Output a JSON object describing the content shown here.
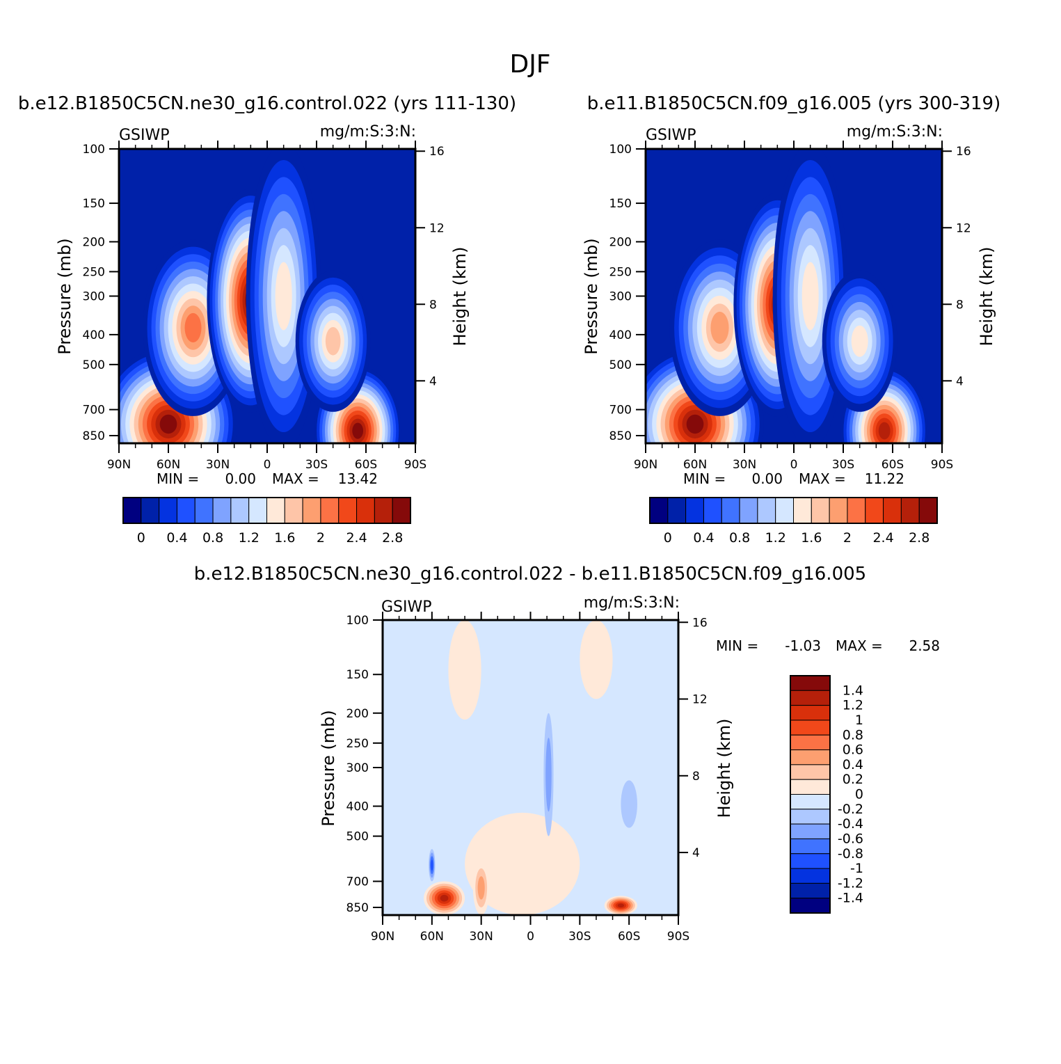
{
  "page": {
    "title": "DJF"
  },
  "colors": {
    "abs_scale": [
      "#000080",
      "#0021a9",
      "#0433e0",
      "#1f51ff",
      "#4073ff",
      "#7fa3ff",
      "#adc8ff",
      "#d5e7ff",
      "#ffe9d9",
      "#fec5a8",
      "#fd9f70",
      "#fc7245",
      "#f1481a",
      "#d9300b",
      "#b5200a",
      "#850a0a"
    ],
    "diff_scale": [
      "#000080",
      "#0021a9",
      "#0433e0",
      "#1f51ff",
      "#4073ff",
      "#7fa3ff",
      "#adc8ff",
      "#d5e7ff",
      "#ffe9d9",
      "#fec5a8",
      "#fd9f70",
      "#fc7245",
      "#f1481a",
      "#d9300b",
      "#b5200a",
      "#850a0a"
    ]
  },
  "chart_data": [
    {
      "type": "contour",
      "title": "b.e12.B1850C5CN.ne30_g16.control.022 (yrs 111-130)",
      "left_label": "GSIWP",
      "right_label": "mg/m:S:3:N:",
      "ylabel": "Pressure (mb)",
      "ylabel_right": "Height (km)",
      "x_ticks": [
        "90N",
        "60N",
        "30N",
        "0",
        "30S",
        "60S",
        "90S"
      ],
      "y_ticks": [
        "100",
        "150",
        "200",
        "250",
        "300",
        "400",
        "500",
        "700",
        "850"
      ],
      "y_ticks_right": [
        "16",
        "12",
        "8",
        "4"
      ],
      "min_label": "MIN =",
      "min_value": "0.00",
      "max_label": "MAX =",
      "max_value": "13.42",
      "colorbar_labels": [
        "0",
        "0.4",
        "0.8",
        "1.2",
        "1.6",
        "2",
        "2.4",
        "2.8"
      ],
      "blobs": [
        {
          "lat": 60,
          "p": 780,
          "lw": 22,
          "ph": 130,
          "peak": 15
        },
        {
          "lat": 45,
          "p": 380,
          "lw": 16,
          "ph": 150,
          "peak": 11
        },
        {
          "lat": 10,
          "p": 310,
          "lw": 14,
          "ph": 190,
          "peak": 15
        },
        {
          "lat": -10,
          "p": 300,
          "lw": 12,
          "ph": 260,
          "peak": 8
        },
        {
          "lat": -55,
          "p": 820,
          "lw": 14,
          "ph": 110,
          "peak": 15
        },
        {
          "lat": -40,
          "p": 420,
          "lw": 12,
          "ph": 120,
          "peak": 9
        }
      ]
    },
    {
      "type": "contour",
      "title": "b.e11.B1850C5CN.f09_g16.005 (yrs 300-319)",
      "left_label": "GSIWP",
      "right_label": "mg/m:S:3:N:",
      "ylabel": "Pressure (mb)",
      "ylabel_right": "Height (km)",
      "x_ticks": [
        "90N",
        "60N",
        "30N",
        "0",
        "30S",
        "60S",
        "90S"
      ],
      "y_ticks": [
        "100",
        "150",
        "200",
        "250",
        "300",
        "400",
        "500",
        "700",
        "850"
      ],
      "y_ticks_right": [
        "16",
        "12",
        "8",
        "4"
      ],
      "min_label": "MIN =",
      "min_value": "0.00",
      "max_label": "MAX =",
      "max_value": "11.22",
      "colorbar_labels": [
        "0",
        "0.4",
        "0.8",
        "1.2",
        "1.6",
        "2",
        "2.4",
        "2.8"
      ],
      "blobs": [
        {
          "lat": 60,
          "p": 780,
          "lw": 22,
          "ph": 130,
          "peak": 15
        },
        {
          "lat": 45,
          "p": 380,
          "lw": 16,
          "ph": 150,
          "peak": 10
        },
        {
          "lat": 10,
          "p": 320,
          "lw": 14,
          "ph": 190,
          "peak": 14
        },
        {
          "lat": -10,
          "p": 300,
          "lw": 12,
          "ph": 260,
          "peak": 8
        },
        {
          "lat": -55,
          "p": 820,
          "lw": 14,
          "ph": 110,
          "peak": 14
        },
        {
          "lat": -40,
          "p": 420,
          "lw": 12,
          "ph": 120,
          "peak": 8
        }
      ]
    },
    {
      "type": "contour",
      "title": "b.e12.B1850C5CN.ne30_g16.control.022 - b.e11.B1850C5CN.f09_g16.005",
      "left_label": "GSIWP",
      "right_label": "mg/m:S:3:N:",
      "ylabel": "Pressure (mb)",
      "ylabel_right": "Height (km)",
      "x_ticks": [
        "90N",
        "60N",
        "30N",
        "0",
        "30S",
        "60S",
        "90S"
      ],
      "y_ticks": [
        "100",
        "150",
        "200",
        "250",
        "300",
        "400",
        "500",
        "700",
        "850"
      ],
      "y_ticks_right": [
        "16",
        "12",
        "8",
        "4"
      ],
      "min_label": "MIN =",
      "min_value": "-1.03",
      "max_label": "MAX =",
      "max_value": "2.58",
      "colorbar_labels": [
        "1.4",
        "1.2",
        "1",
        "0.8",
        "0.6",
        "0.4",
        "0.2",
        "0",
        "-0.2",
        "-0.4",
        "-0.6",
        "-0.8",
        "-1",
        "-1.2",
        "-1.4"
      ],
      "regions": [
        {
          "lat0": 65,
          "lat1": 40,
          "p0": 700,
          "p1": 900,
          "level": 14
        },
        {
          "lat0": 62,
          "lat1": 58,
          "p0": 550,
          "p1": 700,
          "level": 3
        },
        {
          "lat0": 35,
          "lat1": 25,
          "p0": 600,
          "p1": 900,
          "level": 10
        },
        {
          "lat0": -45,
          "lat1": -65,
          "p0": 780,
          "p1": 900,
          "level": 14
        },
        {
          "lat0": -8,
          "lat1": -14,
          "p0": 200,
          "p1": 500,
          "level": 5
        },
        {
          "lat0": -55,
          "lat1": -65,
          "p0": 330,
          "p1": 470,
          "level": 6
        },
        {
          "lat0": 50,
          "lat1": 30,
          "p0": 100,
          "p1": 210,
          "level": 8
        },
        {
          "lat0": -30,
          "lat1": -50,
          "p0": 100,
          "p1": 180,
          "level": 8
        },
        {
          "lat0": 40,
          "lat1": -30,
          "p0": 420,
          "p1": 900,
          "level": 8
        }
      ]
    }
  ]
}
